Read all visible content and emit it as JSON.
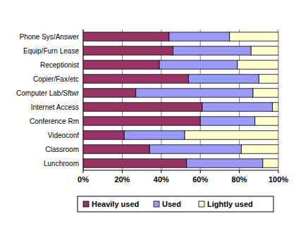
{
  "chart_data": {
    "type": "bar",
    "orientation": "horizontal",
    "stacked": true,
    "grid": true,
    "legend": "bottom",
    "categories": [
      "Phone Sys/Answer",
      "Equip/Furn Lease",
      "Receptionist",
      "Copier/Fax/etc",
      "Computer Lab/Sftwr",
      "Internet Access",
      "Conference Rm",
      "Videoconf",
      "Classroom",
      "Lunchroom"
    ],
    "series": [
      {
        "name": "Heavily used",
        "color": "#993366",
        "values": [
          44,
          46,
          39,
          54,
          27,
          61,
          60,
          21,
          34,
          53
        ]
      },
      {
        "name": "Used",
        "color": "#9999ff",
        "values": [
          31,
          40,
          40,
          36,
          60,
          36,
          28,
          31,
          47,
          39
        ]
      },
      {
        "name": "Lightly used",
        "color": "#ffffcc",
        "values": [
          25,
          14,
          21,
          10,
          13,
          3,
          12,
          48,
          19,
          8
        ]
      }
    ],
    "xlim": [
      0,
      100
    ],
    "xticks": [
      {
        "value": 0,
        "label": "0%"
      },
      {
        "value": 20,
        "label": "20%"
      },
      {
        "value": 40,
        "label": "40%"
      },
      {
        "value": 60,
        "label": "60%"
      },
      {
        "value": 80,
        "label": "80%"
      },
      {
        "value": 100,
        "label": "100%"
      }
    ]
  }
}
